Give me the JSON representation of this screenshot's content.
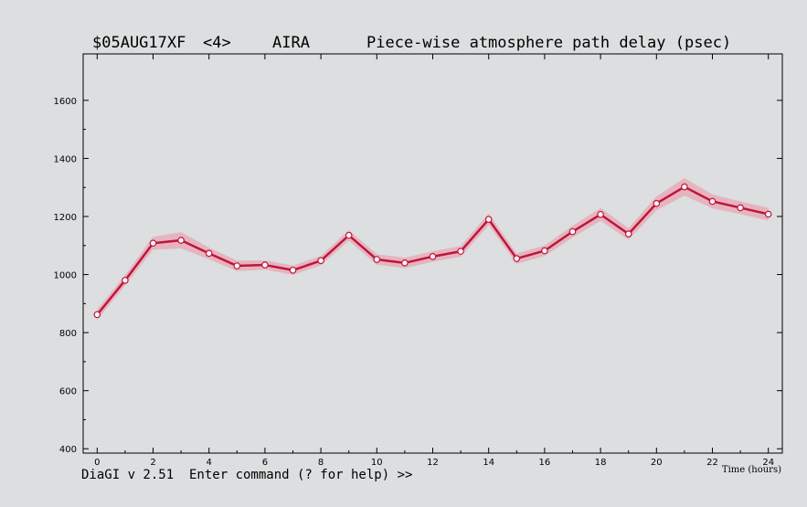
{
  "window": {
    "experiment": "$05AUG17XF",
    "index": "<4>",
    "station": "AIRA",
    "title": "Piece-wise atmosphere path delay (psec)",
    "command_prompt": "DiaGI v 2.51  Enter command (? for help) >>"
  },
  "chart_data": {
    "type": "line",
    "title": "Piece-wise atmosphere path delay (psec)",
    "xlabel": "Time (hours)",
    "ylabel": "",
    "xlim": [
      -0.5,
      24.5
    ],
    "ylim": [
      385,
      1760
    ],
    "x_ticks": [
      0,
      2,
      4,
      6,
      8,
      10,
      12,
      14,
      16,
      18,
      20,
      22,
      24
    ],
    "y_ticks": [
      400,
      600,
      800,
      1000,
      1200,
      1400,
      1600
    ],
    "grid": false,
    "legend": "none",
    "series": [
      {
        "color": "#c0143c",
        "band_color": "#e8a6b4",
        "x": [
          0,
          1,
          2,
          3,
          4,
          5,
          6,
          7,
          8,
          9,
          10,
          11,
          12,
          13,
          14,
          15,
          16,
          17,
          18,
          19,
          20,
          21,
          22,
          23,
          24
        ],
        "y": [
          862,
          980,
          1108,
          1118,
          1073,
          1030,
          1033,
          1015,
          1048,
          1135,
          1052,
          1040,
          1062,
          1080,
          1190,
          1055,
          1082,
          1148,
          1207,
          1140,
          1245,
          1302,
          1252,
          1230,
          1208
        ],
        "err": [
          18,
          18,
          22,
          28,
          20,
          18,
          16,
          16,
          16,
          18,
          18,
          18,
          18,
          18,
          20,
          18,
          18,
          20,
          22,
          20,
          24,
          30,
          24,
          22,
          22
        ]
      }
    ]
  }
}
